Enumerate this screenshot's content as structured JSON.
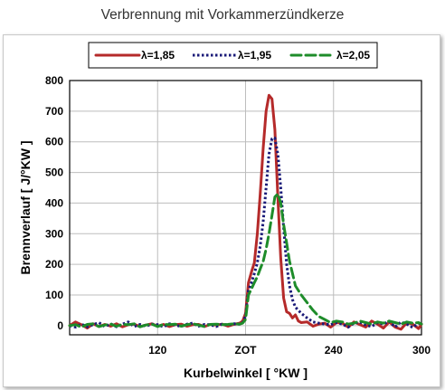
{
  "header": {
    "title": "Verbrennung mit Vorkammerzündkerze"
  },
  "chart_data": {
    "type": "line",
    "xlabel": "Kurbelwinkel [ °KW ]",
    "ylabel": "Brennverlauf [ J/°KW ]",
    "xlim": [
      60,
      300
    ],
    "ylim": [
      -30,
      800
    ],
    "x_ticks": [
      {
        "value": 120,
        "label": "120"
      },
      {
        "value": 180,
        "label": "ZOT"
      },
      {
        "value": 240,
        "label": "240"
      },
      {
        "value": 300,
        "label": "300"
      }
    ],
    "y_ticks": [
      0,
      100,
      200,
      300,
      400,
      500,
      600,
      700,
      800
    ],
    "grid": true,
    "legend_position": "top",
    "series": [
      {
        "name": "λ=1,85",
        "color": "#b52a2a",
        "style": "solid",
        "x": [
          60,
          64,
          68,
          72,
          76,
          80,
          84,
          88,
          92,
          96,
          100,
          104,
          108,
          112,
          116,
          120,
          124,
          128,
          132,
          136,
          140,
          144,
          148,
          152,
          156,
          160,
          164,
          168,
          172,
          176,
          178,
          180,
          182,
          184,
          186,
          188,
          190,
          192,
          194,
          196,
          198,
          200,
          202,
          204,
          206,
          208,
          210,
          212,
          214,
          216,
          218,
          222,
          226,
          230,
          234,
          238,
          242,
          246,
          250,
          254,
          258,
          262,
          266,
          270,
          274,
          278,
          282,
          286,
          290,
          294,
          298,
          300
        ],
        "y": [
          0,
          12,
          3,
          -8,
          6,
          -3,
          4,
          -2,
          6,
          -4,
          3,
          5,
          -3,
          2,
          6,
          -2,
          4,
          -3,
          3,
          5,
          -2,
          3,
          4,
          -3,
          4,
          2,
          5,
          -2,
          4,
          8,
          15,
          40,
          140,
          175,
          205,
          300,
          430,
          580,
          700,
          752,
          740,
          640,
          420,
          220,
          90,
          45,
          40,
          25,
          35,
          15,
          10,
          12,
          -2,
          5,
          8,
          -5,
          10,
          8,
          -5,
          12,
          3,
          -5,
          15,
          5,
          -8,
          12,
          -5,
          -12,
          10,
          5,
          -10,
          5
        ]
      },
      {
        "name": "λ=1,95",
        "color": "#1a1a78",
        "style": "dotted",
        "x": [
          60,
          64,
          68,
          72,
          76,
          80,
          84,
          88,
          92,
          96,
          100,
          104,
          108,
          112,
          116,
          120,
          124,
          128,
          132,
          136,
          140,
          144,
          148,
          152,
          156,
          160,
          164,
          168,
          172,
          176,
          178,
          180,
          182,
          184,
          186,
          188,
          190,
          192,
          194,
          196,
          198,
          200,
          202,
          204,
          206,
          208,
          210,
          212,
          214,
          218,
          222,
          226,
          230,
          234,
          238,
          242,
          246,
          250,
          254,
          258,
          262,
          266,
          270,
          274,
          278,
          282,
          286,
          290,
          294,
          298,
          300
        ],
        "y": [
          0,
          -5,
          5,
          -4,
          3,
          10,
          -3,
          6,
          -4,
          5,
          12,
          -3,
          4,
          -2,
          5,
          3,
          -4,
          6,
          2,
          -3,
          5,
          8,
          -2,
          4,
          3,
          -3,
          5,
          2,
          6,
          5,
          10,
          30,
          115,
          140,
          170,
          205,
          260,
          340,
          450,
          560,
          610,
          612,
          560,
          450,
          320,
          200,
          130,
          85,
          60,
          40,
          25,
          12,
          8,
          5,
          3,
          10,
          5,
          -5,
          8,
          12,
          2,
          -3,
          10,
          5,
          14,
          -5,
          12,
          5,
          -6,
          8,
          3
        ]
      },
      {
        "name": "λ=2,05",
        "color": "#1e8c2a",
        "style": "dashed",
        "x": [
          60,
          64,
          68,
          72,
          76,
          80,
          84,
          88,
          92,
          96,
          100,
          104,
          108,
          112,
          116,
          120,
          124,
          128,
          132,
          136,
          140,
          144,
          148,
          152,
          156,
          160,
          164,
          168,
          172,
          176,
          178,
          180,
          182,
          184,
          186,
          188,
          190,
          192,
          194,
          196,
          198,
          200,
          202,
          204,
          206,
          208,
          210,
          212,
          214,
          218,
          222,
          226,
          230,
          234,
          238,
          242,
          246,
          250,
          254,
          258,
          262,
          266,
          270,
          274,
          278,
          282,
          286,
          290,
          294,
          298,
          300
        ],
        "y": [
          0,
          3,
          -5,
          4,
          6,
          -3,
          2,
          5,
          -2,
          4,
          3,
          6,
          -4,
          2,
          5,
          -3,
          4,
          3,
          5,
          -2,
          3,
          6,
          2,
          -3,
          4,
          5,
          3,
          4,
          6,
          5,
          8,
          20,
          100,
          120,
          140,
          160,
          185,
          210,
          250,
          300,
          360,
          420,
          430,
          400,
          330,
          270,
          210,
          170,
          130,
          100,
          75,
          50,
          30,
          20,
          10,
          15,
          12,
          5,
          8,
          15,
          10,
          5,
          12,
          8,
          15,
          10,
          5,
          12,
          8,
          10,
          5
        ]
      }
    ]
  }
}
